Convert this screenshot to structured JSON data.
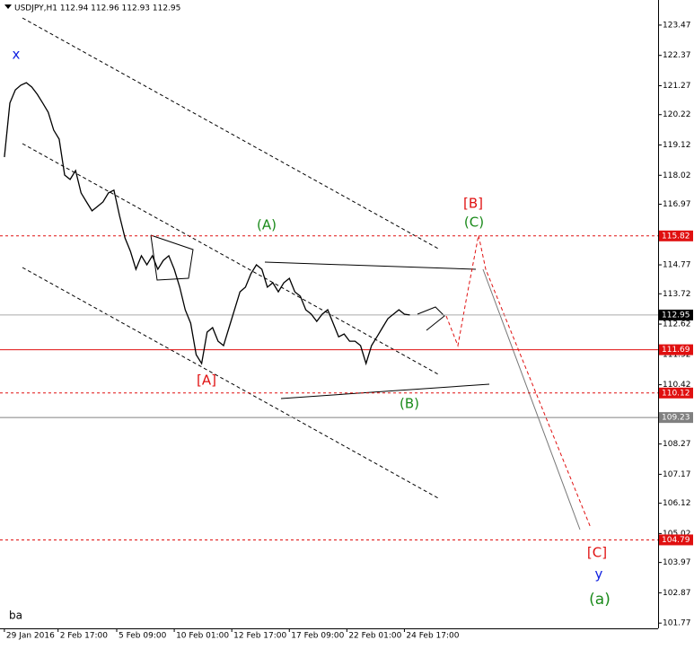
{
  "chart_data": {
    "type": "line",
    "header": "USDJPY,H1  112.94 112.96 112.93 112.95",
    "color": "#000000",
    "values": [
      118.68,
      120.64,
      121.12,
      121.29,
      121.38,
      121.22,
      120.96,
      120.64,
      120.31,
      119.66,
      119.33,
      118.03,
      117.87,
      118.19,
      117.38,
      117.05,
      116.73,
      116.89,
      117.05,
      117.38,
      117.48,
      116.56,
      115.75,
      115.26,
      114.61,
      115.1,
      114.77,
      115.1,
      114.61,
      114.93,
      115.1,
      114.61,
      113.96,
      113.14,
      112.65,
      111.51,
      111.19,
      112.33,
      112.49,
      112.0,
      111.84,
      112.49,
      113.14,
      113.79,
      113.96,
      114.45,
      114.77,
      114.61,
      113.96,
      114.12,
      113.79,
      114.12,
      114.28,
      113.79,
      113.63,
      113.14,
      112.98,
      112.72,
      112.98,
      113.14,
      112.65,
      112.16,
      112.26,
      112.0,
      112.0,
      111.84,
      111.19,
      111.84,
      112.16,
      112.49,
      112.82,
      112.98,
      113.14,
      112.98,
      112.95
    ],
    "xlim": [
      -0.8,
      119.3
    ],
    "xticks": [
      {
        "value": 0,
        "label": "29 Jan 2016"
      },
      {
        "value": 9.8,
        "label": "2 Feb 17:00"
      },
      {
        "value": 20.5,
        "label": "5 Feb 09:00"
      },
      {
        "value": 31,
        "label": "10 Feb 01:00"
      },
      {
        "value": 41.5,
        "label": "12 Feb 17:00"
      },
      {
        "value": 52,
        "label": "17 Feb 09:00"
      },
      {
        "value": 62.5,
        "label": "22 Feb 01:00"
      },
      {
        "value": 73,
        "label": "24 Feb 17:00"
      }
    ],
    "ylim": [
      101.58,
      124.38
    ],
    "yticks": [
      123.47,
      122.37,
      121.27,
      120.22,
      119.12,
      118.02,
      116.97,
      114.77,
      113.72,
      112.62,
      111.52,
      110.42,
      108.27,
      107.17,
      106.12,
      105.02,
      103.97,
      102.87,
      101.77
    ],
    "levels": [
      {
        "value": 115.82,
        "color": "#e01010",
        "dashed": true
      },
      {
        "value": 112.95,
        "color": "#000000",
        "dashed": false
      },
      {
        "value": 111.69,
        "color": "#e01010",
        "dashed": false
      },
      {
        "value": 110.12,
        "color": "#e01010",
        "dashed": true
      },
      {
        "value": 109.23,
        "color": "#808080",
        "dashed": false
      },
      {
        "value": 104.79,
        "color": "#e01010",
        "dashed": true
      }
    ],
    "annotations": [
      "x",
      "[A]",
      "(A)",
      "[B]",
      "(C)",
      "(B)",
      "[C]",
      "y",
      "(a)",
      "ba"
    ]
  }
}
